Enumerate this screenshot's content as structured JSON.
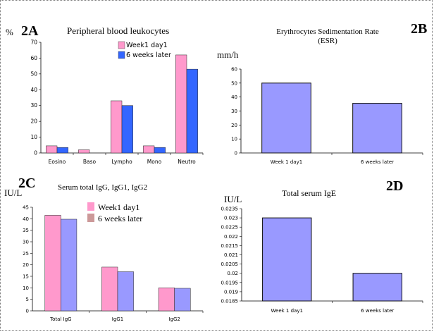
{
  "chart_data": [
    {
      "id": "2A",
      "type": "bar",
      "panel_label": "2A",
      "title": "Peripheral blood leukocytes",
      "unit": "%",
      "categories": [
        "Eosino",
        "Baso",
        "Lympho",
        "Mono",
        "Neutro"
      ],
      "series": [
        {
          "name": "Week1 day1",
          "values": [
            4.5,
            2,
            33,
            4.5,
            62
          ],
          "color": "#ff99cc"
        },
        {
          "name": "6 weeks later",
          "values": [
            3.5,
            0,
            30,
            3.5,
            53
          ],
          "color": "#3366ff"
        }
      ],
      "ylim": [
        0,
        70
      ],
      "ticks": [
        0,
        10,
        20,
        30,
        40,
        50,
        60,
        70
      ],
      "legend": "top-right"
    },
    {
      "id": "2B",
      "type": "bar",
      "panel_label": "2B",
      "title": "Erythrocytes Sedimentation Rate",
      "title_line2": "(ESR)",
      "unit": "mm/h",
      "categories": [
        "Week 1 day1",
        "6 weeks later"
      ],
      "values": [
        50,
        35.5
      ],
      "color": "#9999ff",
      "ylim": [
        0,
        60
      ],
      "ticks": [
        0,
        10,
        20,
        30,
        40,
        50,
        60
      ]
    },
    {
      "id": "2C",
      "type": "bar",
      "panel_label": "2C",
      "title": "Serum total IgG, IgG1, IgG2",
      "unit": "IU/L",
      "categories": [
        "Total IgG",
        "IgG1",
        "IgG2"
      ],
      "series": [
        {
          "name": "Week1 day1",
          "values": [
            41.5,
            19,
            10
          ],
          "color": "#ff99cc"
        },
        {
          "name": "6 weeks later",
          "values": [
            39.8,
            17,
            9.8
          ],
          "color": "#9999ff"
        }
      ],
      "legend_colors": [
        "#ff99cc",
        "#cc9999"
      ],
      "ylim": [
        0,
        45
      ],
      "ticks": [
        0,
        5,
        10,
        15,
        20,
        25,
        30,
        35,
        40,
        45
      ],
      "legend": "top-right"
    },
    {
      "id": "2D",
      "type": "bar",
      "panel_label": "2D",
      "title": "Total serum IgE",
      "unit": "IU/L",
      "categories": [
        "Week 1 day1",
        "6 weeks later"
      ],
      "values": [
        0.023,
        0.02
      ],
      "color": "#9999ff",
      "ylim": [
        0.0185,
        0.0235
      ],
      "ticks": [
        "0.0185",
        "0.019",
        "0.0195",
        "0.02",
        "0.0205",
        "0.021",
        "0.0215",
        "0.022",
        "0.0225",
        "0.023",
        "0.0235"
      ]
    }
  ]
}
